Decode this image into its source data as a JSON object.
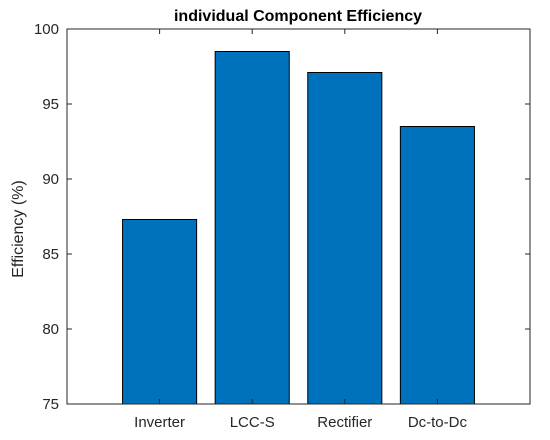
{
  "chart_data": {
    "type": "bar",
    "title": "individual Component Efficiency",
    "xlabel": "",
    "ylabel": "Efficiency (%)",
    "categories": [
      "Inverter",
      "LCC-S",
      "Rectifier",
      "Dc-to-Dc"
    ],
    "values": [
      87.3,
      98.5,
      97.1,
      93.5
    ],
    "ylim": [
      75,
      100
    ],
    "yticks": [
      75,
      80,
      85,
      90,
      95,
      100
    ],
    "bar_color": "#0072BD",
    "grid": false,
    "legend": "none"
  }
}
